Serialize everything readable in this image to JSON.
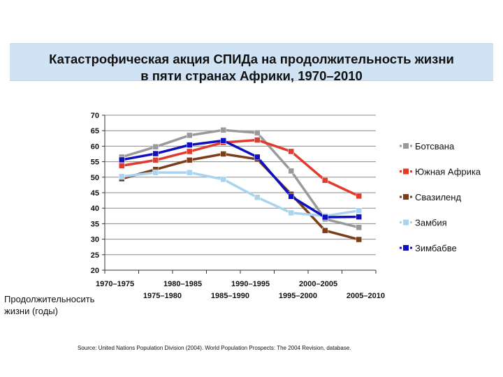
{
  "title_lines": [
    "Катастрофическая акция СПИДа на продолжительность жизни",
    "в пяти странах Африки, 1970–2010"
  ],
  "ylabel": "Продолжительносить\nжизни (годы)",
  "source": "Source:  United Nations Population Division (2004).  World Population Prospects: The 2004 Revision, database.",
  "chart_data": {
    "type": "line",
    "title": "Катастрофическая акция СПИДа на продолжительность жизни в пяти странах Африки, 1970–2010",
    "xlabel": "",
    "ylabel": "Продолжительносить жизни (годы)",
    "categories": [
      "1970–1975",
      "1975–1980",
      "1980–1985",
      "1985–1990",
      "1990–1995",
      "1995–2000",
      "2000–2005",
      "2005–2010"
    ],
    "ylim": [
      20,
      70
    ],
    "yticks": [
      20,
      25,
      30,
      35,
      40,
      45,
      50,
      55,
      60,
      65,
      70
    ],
    "grid": "horizontal",
    "legend_position": "right",
    "series": [
      {
        "name": "Ботсвана",
        "color": "#9a9a9a",
        "values": [
          56.5,
          59.8,
          63.5,
          65.2,
          64.3,
          52.0,
          36.5,
          33.8
        ]
      },
      {
        "name": "Южная Африка",
        "color": "#e23b2e",
        "values": [
          53.7,
          55.5,
          58.3,
          61.2,
          62.0,
          58.3,
          49.0,
          43.9
        ]
      },
      {
        "name": "Свазиленд",
        "color": "#7a3e1a",
        "values": [
          49.5,
          52.5,
          55.5,
          57.5,
          55.8,
          44.5,
          32.8,
          29.9
        ]
      },
      {
        "name": "Замбия",
        "color": "#a8d4f0",
        "values": [
          50.2,
          51.5,
          51.5,
          49.3,
          43.5,
          38.5,
          37.5,
          39.2
        ]
      },
      {
        "name": "Зимбабве",
        "color": "#1010c0",
        "values": [
          55.6,
          57.6,
          60.4,
          61.8,
          56.5,
          43.8,
          37.1,
          37.2
        ]
      }
    ]
  }
}
